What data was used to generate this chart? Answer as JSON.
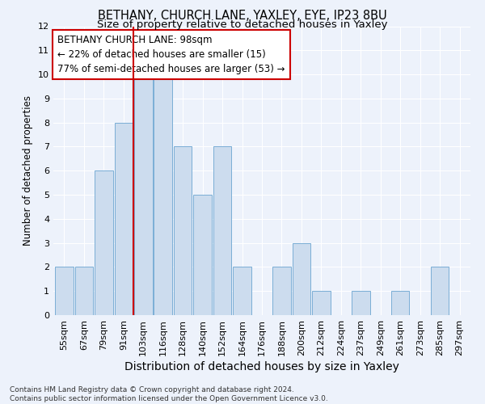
{
  "title1": "BETHANY, CHURCH LANE, YAXLEY, EYE, IP23 8BU",
  "title2": "Size of property relative to detached houses in Yaxley",
  "xlabel": "Distribution of detached houses by size in Yaxley",
  "ylabel": "Number of detached properties",
  "categories": [
    "55sqm",
    "67sqm",
    "79sqm",
    "91sqm",
    "103sqm",
    "116sqm",
    "128sqm",
    "140sqm",
    "152sqm",
    "164sqm",
    "176sqm",
    "188sqm",
    "200sqm",
    "212sqm",
    "224sqm",
    "237sqm",
    "249sqm",
    "261sqm",
    "273sqm",
    "285sqm",
    "297sqm"
  ],
  "values": [
    2,
    2,
    6,
    8,
    10,
    10,
    7,
    5,
    7,
    2,
    0,
    2,
    3,
    1,
    0,
    1,
    0,
    1,
    0,
    2,
    0
  ],
  "bar_color": "#ccdcee",
  "bar_edge_color": "#7aaed6",
  "vline_x_index": 4,
  "annotation_text": "BETHANY CHURCH LANE: 98sqm\n← 22% of detached houses are smaller (15)\n77% of semi-detached houses are larger (53) →",
  "annotation_box_color": "#ffffff",
  "annotation_box_edge": "#cc0000",
  "vline_color": "#cc0000",
  "ylim": [
    0,
    12
  ],
  "yticks": [
    0,
    1,
    2,
    3,
    4,
    5,
    6,
    7,
    8,
    9,
    10,
    11,
    12
  ],
  "footnote": "Contains HM Land Registry data © Crown copyright and database right 2024.\nContains public sector information licensed under the Open Government Licence v3.0.",
  "background_color": "#edf2fb",
  "grid_color": "#ffffff",
  "title1_fontsize": 10.5,
  "title2_fontsize": 9.5,
  "xlabel_fontsize": 10,
  "ylabel_fontsize": 8.5,
  "tick_fontsize": 8,
  "annot_fontsize": 8.5,
  "footnote_fontsize": 6.5
}
